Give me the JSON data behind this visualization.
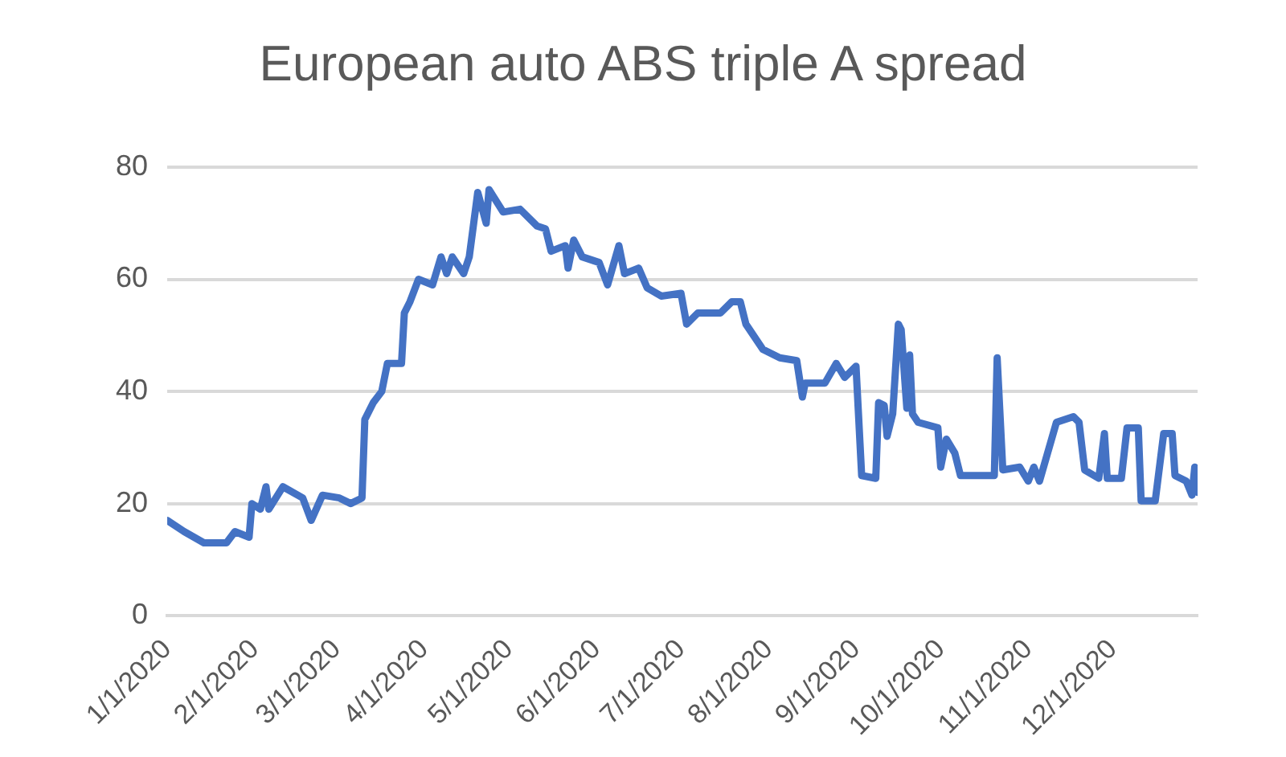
{
  "chart_data": {
    "type": "line",
    "title": "European auto ABS triple A spread",
    "x": [
      "2020-01-01",
      "2020-01-07",
      "2020-01-14",
      "2020-01-22",
      "2020-01-25",
      "2020-01-30",
      "2020-01-31",
      "2020-02-03",
      "2020-02-05",
      "2020-02-06",
      "2020-02-11",
      "2020-02-18",
      "2020-02-21",
      "2020-02-25",
      "2020-03-02",
      "2020-03-06",
      "2020-03-10",
      "2020-03-11",
      "2020-03-14",
      "2020-03-17",
      "2020-03-19",
      "2020-03-24",
      "2020-03-25",
      "2020-03-27",
      "2020-03-30",
      "2020-04-04",
      "2020-04-07",
      "2020-04-09",
      "2020-04-11",
      "2020-04-15",
      "2020-04-17",
      "2020-04-20",
      "2020-04-23",
      "2020-04-24",
      "2020-04-29",
      "2020-05-05",
      "2020-05-11",
      "2020-05-14",
      "2020-05-16",
      "2020-05-21",
      "2020-05-22",
      "2020-05-24",
      "2020-05-27",
      "2020-06-02",
      "2020-06-05",
      "2020-06-09",
      "2020-06-11",
      "2020-06-16",
      "2020-06-19",
      "2020-06-24",
      "2020-07-01",
      "2020-07-03",
      "2020-07-07",
      "2020-07-15",
      "2020-07-19",
      "2020-07-22",
      "2020-07-24",
      "2020-07-30",
      "2020-08-05",
      "2020-08-11",
      "2020-08-13",
      "2020-08-14",
      "2020-08-21",
      "2020-08-25",
      "2020-08-28",
      "2020-09-01",
      "2020-09-03",
      "2020-09-08",
      "2020-09-09",
      "2020-09-11",
      "2020-09-12",
      "2020-09-14",
      "2020-09-16",
      "2020-09-17",
      "2020-09-19",
      "2020-09-20",
      "2020-09-21",
      "2020-09-23",
      "2020-09-30",
      "2020-10-01",
      "2020-10-03",
      "2020-10-06",
      "2020-10-08",
      "2020-10-20",
      "2020-10-21",
      "2020-10-23",
      "2020-10-29",
      "2020-11-01",
      "2020-11-03",
      "2020-11-05",
      "2020-11-11",
      "2020-11-17",
      "2020-11-19",
      "2020-11-21",
      "2020-11-26",
      "2020-11-28",
      "2020-11-29",
      "2020-12-04",
      "2020-12-06",
      "2020-12-10",
      "2020-12-11",
      "2020-12-16",
      "2020-12-17",
      "2020-12-19",
      "2020-12-22",
      "2020-12-23",
      "2020-12-27",
      "2020-12-29",
      "2020-12-30",
      "2020-12-31"
    ],
    "series": [
      {
        "color": "#4472c4",
        "values": [
          17,
          15,
          13,
          13,
          15,
          14,
          20,
          19,
          23,
          19,
          23,
          21,
          17,
          21.5,
          21,
          20,
          21,
          35,
          38,
          40,
          45,
          45,
          54,
          56,
          60,
          59,
          64,
          61,
          64,
          61,
          64,
          75.5,
          70,
          76,
          72,
          72.5,
          69.5,
          69,
          65,
          66,
          62,
          67,
          64,
          63,
          59,
          66,
          61,
          62,
          58.5,
          57,
          57.5,
          52,
          54,
          54,
          56,
          56,
          52,
          47.5,
          46,
          45.5,
          39,
          41.5,
          41.5,
          45,
          42.5,
          44.5,
          25,
          24.5,
          38,
          37.5,
          32,
          36,
          52,
          51,
          37,
          46.5,
          36,
          34.5,
          33.5,
          26.5,
          31.5,
          29,
          25,
          25,
          46,
          26,
          26.5,
          24,
          26.5,
          24,
          34.5,
          35.5,
          34.5,
          26,
          24.5,
          32.5,
          24.5,
          24.5,
          33.5,
          33.5,
          20.5,
          20.5,
          24.5,
          32.5,
          32.5,
          25,
          24,
          21.5,
          26.5,
          22
        ]
      }
    ],
    "xlim": [
      "2020-01-01",
      "2020-12-31"
    ],
    "xticks": [
      {
        "value": "2020-01-01",
        "label": "1/1/2020"
      },
      {
        "value": "2020-02-01",
        "label": "2/1/2020"
      },
      {
        "value": "2020-03-01",
        "label": "3/1/2020"
      },
      {
        "value": "2020-04-01",
        "label": "4/1/2020"
      },
      {
        "value": "2020-05-01",
        "label": "5/1/2020"
      },
      {
        "value": "2020-06-01",
        "label": "6/1/2020"
      },
      {
        "value": "2020-07-01",
        "label": "7/1/2020"
      },
      {
        "value": "2020-08-01",
        "label": "8/1/2020"
      },
      {
        "value": "2020-09-01",
        "label": "9/1/2020"
      },
      {
        "value": "2020-10-01",
        "label": "10/1/2020"
      },
      {
        "value": "2020-11-01",
        "label": "11/1/2020"
      },
      {
        "value": "2020-12-01",
        "label": "12/1/2020"
      }
    ],
    "ylim": [
      0,
      80
    ],
    "yticks": [
      0,
      20,
      40,
      60,
      80
    ],
    "grid": "y",
    "legend": false,
    "marker": "none",
    "line_style": "solid"
  }
}
